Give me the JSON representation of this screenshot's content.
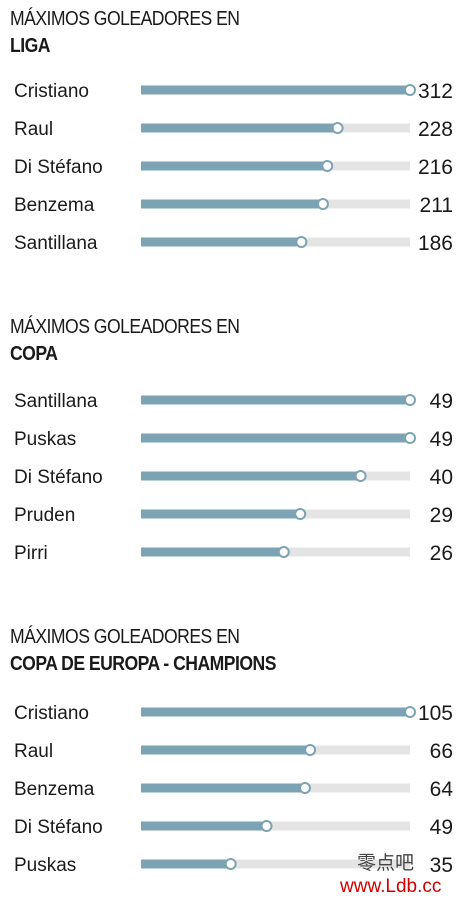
{
  "chart_data": [
    {
      "type": "bar",
      "title_line1": "MÁXIMOS GOLEADORES EN",
      "title_line2": "LIGA",
      "categories": [
        "Cristiano",
        "Raul",
        "Di Stéfano",
        "Benzema",
        "Santillana"
      ],
      "values": [
        312,
        228,
        216,
        211,
        186
      ],
      "xlim": [
        0,
        312
      ],
      "grid": false
    },
    {
      "type": "bar",
      "title_line1": "MÁXIMOS GOLEADORES EN",
      "title_line2": "COPA",
      "categories": [
        "Santillana",
        "Puskas",
        "Di Stéfano",
        "Pruden",
        "Pirri"
      ],
      "values": [
        49,
        49,
        40,
        29,
        26
      ],
      "xlim": [
        0,
        49
      ],
      "grid": false
    },
    {
      "type": "bar",
      "title_line1": "MÁXIMOS GOLEADORES EN",
      "title_line2": "COPA DE EUROPA - CHAMPIONS",
      "categories": [
        "Cristiano",
        "Raul",
        "Benzema",
        "Di Stéfano",
        "Puskas"
      ],
      "values": [
        105,
        66,
        64,
        49,
        35
      ],
      "xlim": [
        0,
        105
      ],
      "grid": false
    }
  ],
  "colors": {
    "bar_fill": "#7ba3b3",
    "track": "#e4e4e4",
    "marker_stroke": "#7ba3b3",
    "text": "#1a1a1a"
  },
  "watermark": {
    "cn": "零点吧",
    "url": "www.Ldb.cc"
  }
}
